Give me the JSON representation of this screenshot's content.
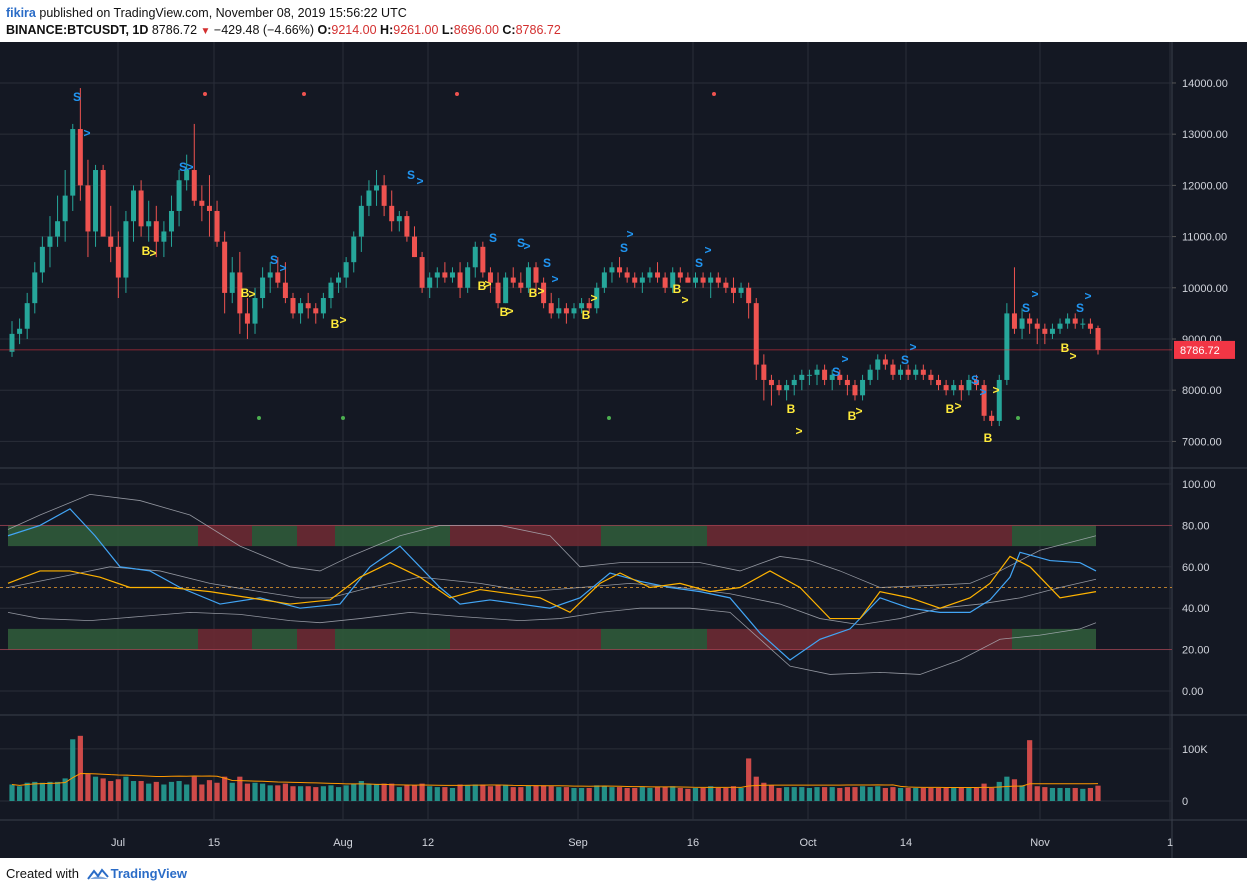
{
  "header": {
    "author": "fikira",
    "published_text": "published on TradingView.com, November 08, 2019 15:56:22 UTC",
    "symbol": "BINANCE:BTCUSDT, 1D",
    "last": "8786.72",
    "change": "−429.48 (−4.66%)",
    "o_label": "O:",
    "o": "9214.00",
    "h_label": "H:",
    "h": "9261.00",
    "l_label": "L:",
    "l": "8696.00",
    "c_label": "C:",
    "c": "8786.72"
  },
  "footer": {
    "created_with": "Created with",
    "brand": "TradingView"
  },
  "colors": {
    "background": "#141823",
    "up": "#26a69a",
    "down": "#ef5350",
    "grid": "#2a2e39",
    "axis_text": "#d1d4dc",
    "sell_signal": "#2196f3",
    "buy_signal": "#ffeb3b",
    "price_label": "#f23645"
  },
  "price_panel": {
    "y_ticks": [
      "14000.00",
      "13000.00",
      "12000.00",
      "11000.00",
      "10000.00",
      "9000.00",
      "8000.00",
      "7000.00"
    ],
    "last_price_label": "8786.72",
    "signal_sell_glyph": "S",
    "signal_buy_glyph": "B",
    "arrow_glyph": ">"
  },
  "oscillator_panel": {
    "y_ticks": [
      "100.00",
      "80.00",
      "60.00",
      "40.00",
      "20.00",
      "0.00"
    ]
  },
  "volume_panel": {
    "y_ticks": [
      "100K",
      "0"
    ]
  },
  "x_axis": {
    "labels": [
      "Jul",
      "15",
      "Aug",
      "12",
      "Sep",
      "16",
      "Oct",
      "14",
      "Nov",
      "1"
    ]
  },
  "chart_data": {
    "type": "candlestick",
    "title": "BINANCE:BTCUSDT, 1D",
    "ylim": [
      6500,
      14800
    ],
    "candles_ohlc": [
      [
        8750,
        9350,
        8650,
        9100
      ],
      [
        9100,
        9400,
        8900,
        9200
      ],
      [
        9200,
        9900,
        9000,
        9700
      ],
      [
        9700,
        10500,
        9500,
        10300
      ],
      [
        10300,
        11000,
        10100,
        10800
      ],
      [
        10800,
        11400,
        10400,
        11000
      ],
      [
        11000,
        11800,
        10800,
        11300
      ],
      [
        11300,
        12300,
        10900,
        11800
      ],
      [
        11800,
        13200,
        11500,
        13100
      ],
      [
        13100,
        13900,
        11700,
        12000
      ],
      [
        12000,
        12500,
        10600,
        11100
      ],
      [
        11100,
        12400,
        10800,
        12300
      ],
      [
        12300,
        12400,
        11000,
        11000
      ],
      [
        11000,
        11600,
        10500,
        10800
      ],
      [
        10800,
        11100,
        9800,
        10200
      ],
      [
        10200,
        11500,
        9900,
        11300
      ],
      [
        11300,
        12000,
        10900,
        11900
      ],
      [
        11900,
        12100,
        11000,
        11200
      ],
      [
        11200,
        11700,
        10900,
        11300
      ],
      [
        11300,
        11600,
        10600,
        10900
      ],
      [
        10900,
        11300,
        10600,
        11100
      ],
      [
        11100,
        11800,
        10800,
        11500
      ],
      [
        11500,
        12300,
        11200,
        12100
      ],
      [
        12100,
        12600,
        11900,
        12300
      ],
      [
        12300,
        13200,
        11600,
        11700
      ],
      [
        11700,
        12000,
        11300,
        11600
      ],
      [
        11600,
        12200,
        11000,
        11500
      ],
      [
        11500,
        11700,
        10800,
        10900
      ],
      [
        10900,
        11100,
        9500,
        9900
      ],
      [
        9900,
        10600,
        9700,
        10300
      ],
      [
        10300,
        10700,
        9100,
        9500
      ],
      [
        9500,
        9800,
        9000,
        9300
      ],
      [
        9300,
        10000,
        9100,
        9800
      ],
      [
        9800,
        10400,
        9600,
        10200
      ],
      [
        10200,
        10500,
        9900,
        10300
      ],
      [
        10300,
        10600,
        10000,
        10100
      ],
      [
        10100,
        10500,
        9700,
        9800
      ],
      [
        9800,
        9900,
        9400,
        9500
      ],
      [
        9500,
        9800,
        9300,
        9700
      ],
      [
        9700,
        9900,
        9400,
        9600
      ],
      [
        9600,
        9700,
        9300,
        9500
      ],
      [
        9500,
        9900,
        9400,
        9800
      ],
      [
        9800,
        10200,
        9600,
        10100
      ],
      [
        10100,
        10300,
        9900,
        10200
      ],
      [
        10200,
        10600,
        10000,
        10500
      ],
      [
        10500,
        11100,
        10300,
        11000
      ],
      [
        11000,
        11800,
        10700,
        11600
      ],
      [
        11600,
        12100,
        11400,
        11900
      ],
      [
        11900,
        12300,
        11600,
        12000
      ],
      [
        12000,
        12200,
        11400,
        11600
      ],
      [
        11600,
        11900,
        11100,
        11300
      ],
      [
        11300,
        11500,
        11100,
        11400
      ],
      [
        11400,
        11500,
        10900,
        11000
      ],
      [
        11000,
        11200,
        10600,
        10600
      ],
      [
        10600,
        10700,
        9900,
        10000
      ],
      [
        10000,
        10300,
        9800,
        10200
      ],
      [
        10200,
        10400,
        10000,
        10300
      ],
      [
        10300,
        10500,
        10100,
        10200
      ],
      [
        10200,
        10400,
        10100,
        10300
      ],
      [
        10300,
        10500,
        9800,
        10000
      ],
      [
        10000,
        10500,
        9900,
        10400
      ],
      [
        10400,
        10900,
        10200,
        10800
      ],
      [
        10800,
        10900,
        10200,
        10300
      ],
      [
        10300,
        10400,
        9900,
        10100
      ],
      [
        10100,
        10300,
        9600,
        9700
      ],
      [
        9700,
        10300,
        9700,
        10200
      ],
      [
        10200,
        10400,
        10000,
        10100
      ],
      [
        10100,
        10300,
        9900,
        10000
      ],
      [
        10000,
        10500,
        9900,
        10400
      ],
      [
        10400,
        10500,
        9900,
        10100
      ],
      [
        10100,
        10200,
        9600,
        9700
      ],
      [
        9700,
        9900,
        9400,
        9500
      ],
      [
        9500,
        9800,
        9400,
        9600
      ],
      [
        9600,
        9700,
        9300,
        9500
      ],
      [
        9500,
        9700,
        9400,
        9600
      ],
      [
        9600,
        9800,
        9500,
        9700
      ],
      [
        9700,
        9800,
        9500,
        9600
      ],
      [
        9600,
        10100,
        9500,
        10000
      ],
      [
        10000,
        10400,
        9900,
        10300
      ],
      [
        10300,
        10500,
        10100,
        10400
      ],
      [
        10400,
        10600,
        10200,
        10300
      ],
      [
        10300,
        10400,
        10100,
        10200
      ],
      [
        10200,
        10300,
        10000,
        10100
      ],
      [
        10100,
        10300,
        9900,
        10200
      ],
      [
        10200,
        10400,
        10100,
        10300
      ],
      [
        10300,
        10500,
        10100,
        10200
      ],
      [
        10200,
        10300,
        9900,
        10000
      ],
      [
        10000,
        10400,
        9900,
        10300
      ],
      [
        10300,
        10400,
        10100,
        10200
      ],
      [
        10200,
        10300,
        10100,
        10100
      ],
      [
        10100,
        10300,
        10000,
        10200
      ],
      [
        10200,
        10300,
        10000,
        10100
      ],
      [
        10100,
        10300,
        9800,
        10200
      ],
      [
        10200,
        10300,
        10000,
        10100
      ],
      [
        10100,
        10200,
        9900,
        10000
      ],
      [
        10000,
        10200,
        9700,
        9900
      ],
      [
        9900,
        10100,
        9800,
        10000
      ],
      [
        10000,
        10100,
        9400,
        9700
      ],
      [
        9700,
        9800,
        8200,
        8500
      ],
      [
        8500,
        8700,
        7800,
        8200
      ],
      [
        8200,
        8300,
        7700,
        8100
      ],
      [
        8100,
        8200,
        7900,
        8000
      ],
      [
        8000,
        8200,
        7800,
        8100
      ],
      [
        8100,
        8300,
        7900,
        8200
      ],
      [
        8200,
        8400,
        8000,
        8300
      ],
      [
        8300,
        8400,
        8100,
        8300
      ],
      [
        8300,
        8500,
        8100,
        8400
      ],
      [
        8400,
        8500,
        8100,
        8200
      ],
      [
        8200,
        8400,
        8000,
        8300
      ],
      [
        8300,
        8400,
        8100,
        8200
      ],
      [
        8200,
        8300,
        7900,
        8100
      ],
      [
        8100,
        8200,
        7800,
        7900
      ],
      [
        7900,
        8300,
        7800,
        8200
      ],
      [
        8200,
        8500,
        8100,
        8400
      ],
      [
        8400,
        8700,
        8200,
        8600
      ],
      [
        8600,
        8700,
        8400,
        8500
      ],
      [
        8500,
        8600,
        8200,
        8300
      ],
      [
        8300,
        8500,
        8200,
        8400
      ],
      [
        8400,
        8500,
        8200,
        8300
      ],
      [
        8300,
        8500,
        8200,
        8400
      ],
      [
        8400,
        8500,
        8200,
        8300
      ],
      [
        8300,
        8400,
        8100,
        8200
      ],
      [
        8200,
        8300,
        8000,
        8100
      ],
      [
        8100,
        8200,
        7900,
        8000
      ],
      [
        8000,
        8200,
        7900,
        8100
      ],
      [
        8100,
        8200,
        7800,
        8000
      ],
      [
        8000,
        8300,
        7900,
        8200
      ],
      [
        8200,
        8300,
        8000,
        8100
      ],
      [
        8100,
        8200,
        7400,
        7500
      ],
      [
        7500,
        7600,
        7300,
        7400
      ],
      [
        7400,
        8300,
        7300,
        8200
      ],
      [
        8200,
        9700,
        8100,
        9500
      ],
      [
        9500,
        10400,
        9100,
        9200
      ],
      [
        9200,
        9600,
        9000,
        9400
      ],
      [
        9400,
        9500,
        9100,
        9300
      ],
      [
        9300,
        9400,
        8900,
        9200
      ],
      [
        9200,
        9300,
        8900,
        9100
      ],
      [
        9100,
        9300,
        9000,
        9200
      ],
      [
        9200,
        9400,
        9100,
        9300
      ],
      [
        9300,
        9500,
        9200,
        9400
      ],
      [
        9400,
        9500,
        9200,
        9300
      ],
      [
        9300,
        9400,
        9200,
        9300
      ],
      [
        9300,
        9400,
        9100,
        9200
      ],
      [
        9214,
        9261,
        8696,
        8786.72
      ]
    ],
    "oscillator_range": [
      0,
      100
    ],
    "volume_range_label": "100K"
  }
}
